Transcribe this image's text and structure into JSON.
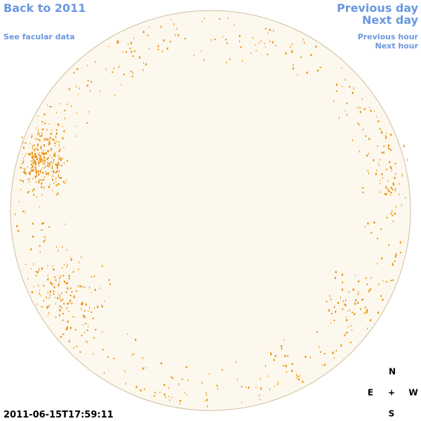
{
  "nav": {
    "back": "Back to 2011",
    "facular": "See facular data",
    "previous_day": "Previous day",
    "next_day": "Next day",
    "previous_hour": "Previous hour",
    "next_hour": "Next hour"
  },
  "timestamp": "2011-06-15T17:59:11",
  "compass": {
    "north": "N",
    "east": "E",
    "center": "+",
    "west": "W",
    "south": "S"
  }
}
